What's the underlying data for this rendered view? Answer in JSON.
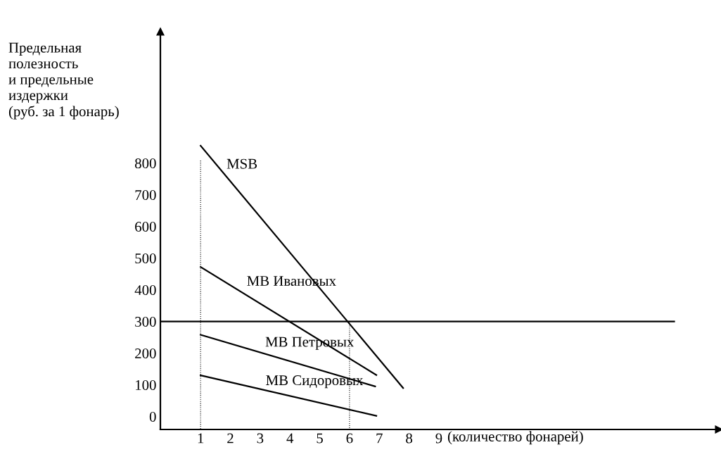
{
  "chart_data": {
    "type": "line",
    "ylabel": "Предельная\nполезность\nи предельные\nиздержки\n(руб. за 1 фонарь)",
    "xlabel": "(количество фонарей)",
    "xlim": [
      -0.35,
      18.4
    ],
    "ylim": [
      -41,
      1215
    ],
    "xticks": [
      1,
      2,
      3,
      4,
      5,
      6,
      7,
      8,
      9
    ],
    "yticks": [
      0,
      100,
      200,
      300,
      400,
      500,
      600,
      700,
      800
    ],
    "grid": false,
    "marker": "none",
    "series": [
      {
        "name": "MSB",
        "color": "#000000",
        "x": [
          1,
          7.8
        ],
        "values": [
          855,
          90
        ]
      },
      {
        "name": "MB Ивановых",
        "color": "#000000",
        "x": [
          1,
          6.9
        ],
        "values": [
          472,
          131
        ]
      },
      {
        "name": "MB Петровых",
        "color": "#000000",
        "x": [
          1,
          6.86
        ],
        "values": [
          258,
          95
        ]
      },
      {
        "name": "MB Сидоровых",
        "color": "#000000",
        "x": [
          1,
          6.9
        ],
        "values": [
          130,
          2
        ]
      },
      {
        "color": "#000000",
        "x": [
          -0.35,
          16.9
        ],
        "values": [
          300,
          300
        ]
      },
      {
        "color": "#000000",
        "x": [
          1,
          1
        ],
        "values": [
          808,
          -41
        ],
        "line_style": "dotted"
      },
      {
        "color": "#000000",
        "x": [
          6,
          6
        ],
        "values": [
          300,
          -41
        ],
        "line_style": "dotted"
      }
    ]
  }
}
